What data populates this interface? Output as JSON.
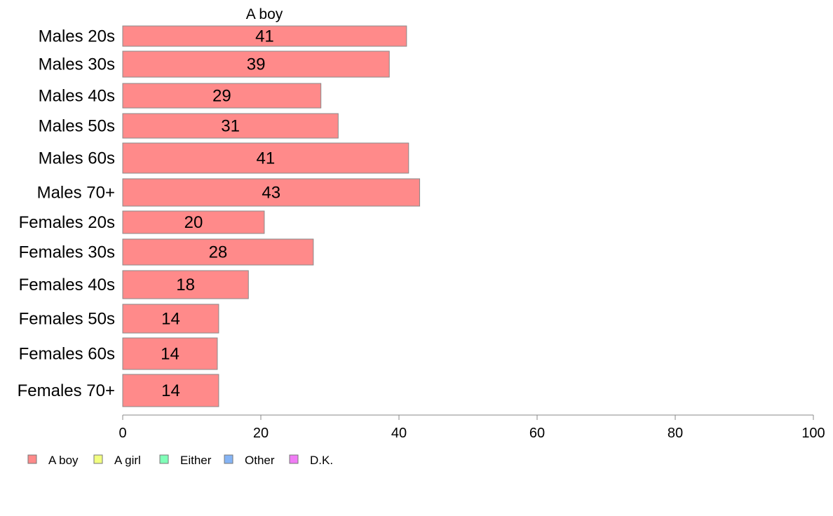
{
  "chart_data": {
    "type": "bar",
    "orientation": "horizontal",
    "stacked": true,
    "categories": [
      "Males 20s",
      "Males 30s",
      "Males 40s",
      "Males 50s",
      "Males 60s",
      "Males 70+",
      "Females 20s",
      "Females 30s",
      "Females 40s",
      "Females 50s",
      "Females 60s",
      "Females 70+"
    ],
    "series": [
      {
        "name": "A boy",
        "color": "#ff8a8a",
        "values": [
          41.1,
          38.6,
          28.7,
          31.2,
          41.4,
          43.0,
          20.5,
          27.6,
          18.2,
          13.9,
          13.7,
          13.9
        ],
        "labels": [
          "41",
          "39",
          "29",
          "31",
          "41",
          "43",
          "20",
          "28",
          "18",
          "14",
          "14",
          "14"
        ]
      }
    ],
    "title": "A boy",
    "xlabel": "",
    "ylabel": "",
    "xlim": [
      0,
      100
    ],
    "xticks": [
      0,
      20,
      40,
      60,
      80,
      100
    ],
    "grid": false,
    "legend": {
      "position": "bottom-left",
      "entries": [
        {
          "name": "A boy",
          "color": "#ff8a8a"
        },
        {
          "name": "A girl",
          "color": "#f2ff80"
        },
        {
          "name": "Either",
          "color": "#80ffb8"
        },
        {
          "name": "Other",
          "color": "#85b4f5"
        },
        {
          "name": "D.K.",
          "color": "#f07cf5"
        }
      ]
    }
  }
}
